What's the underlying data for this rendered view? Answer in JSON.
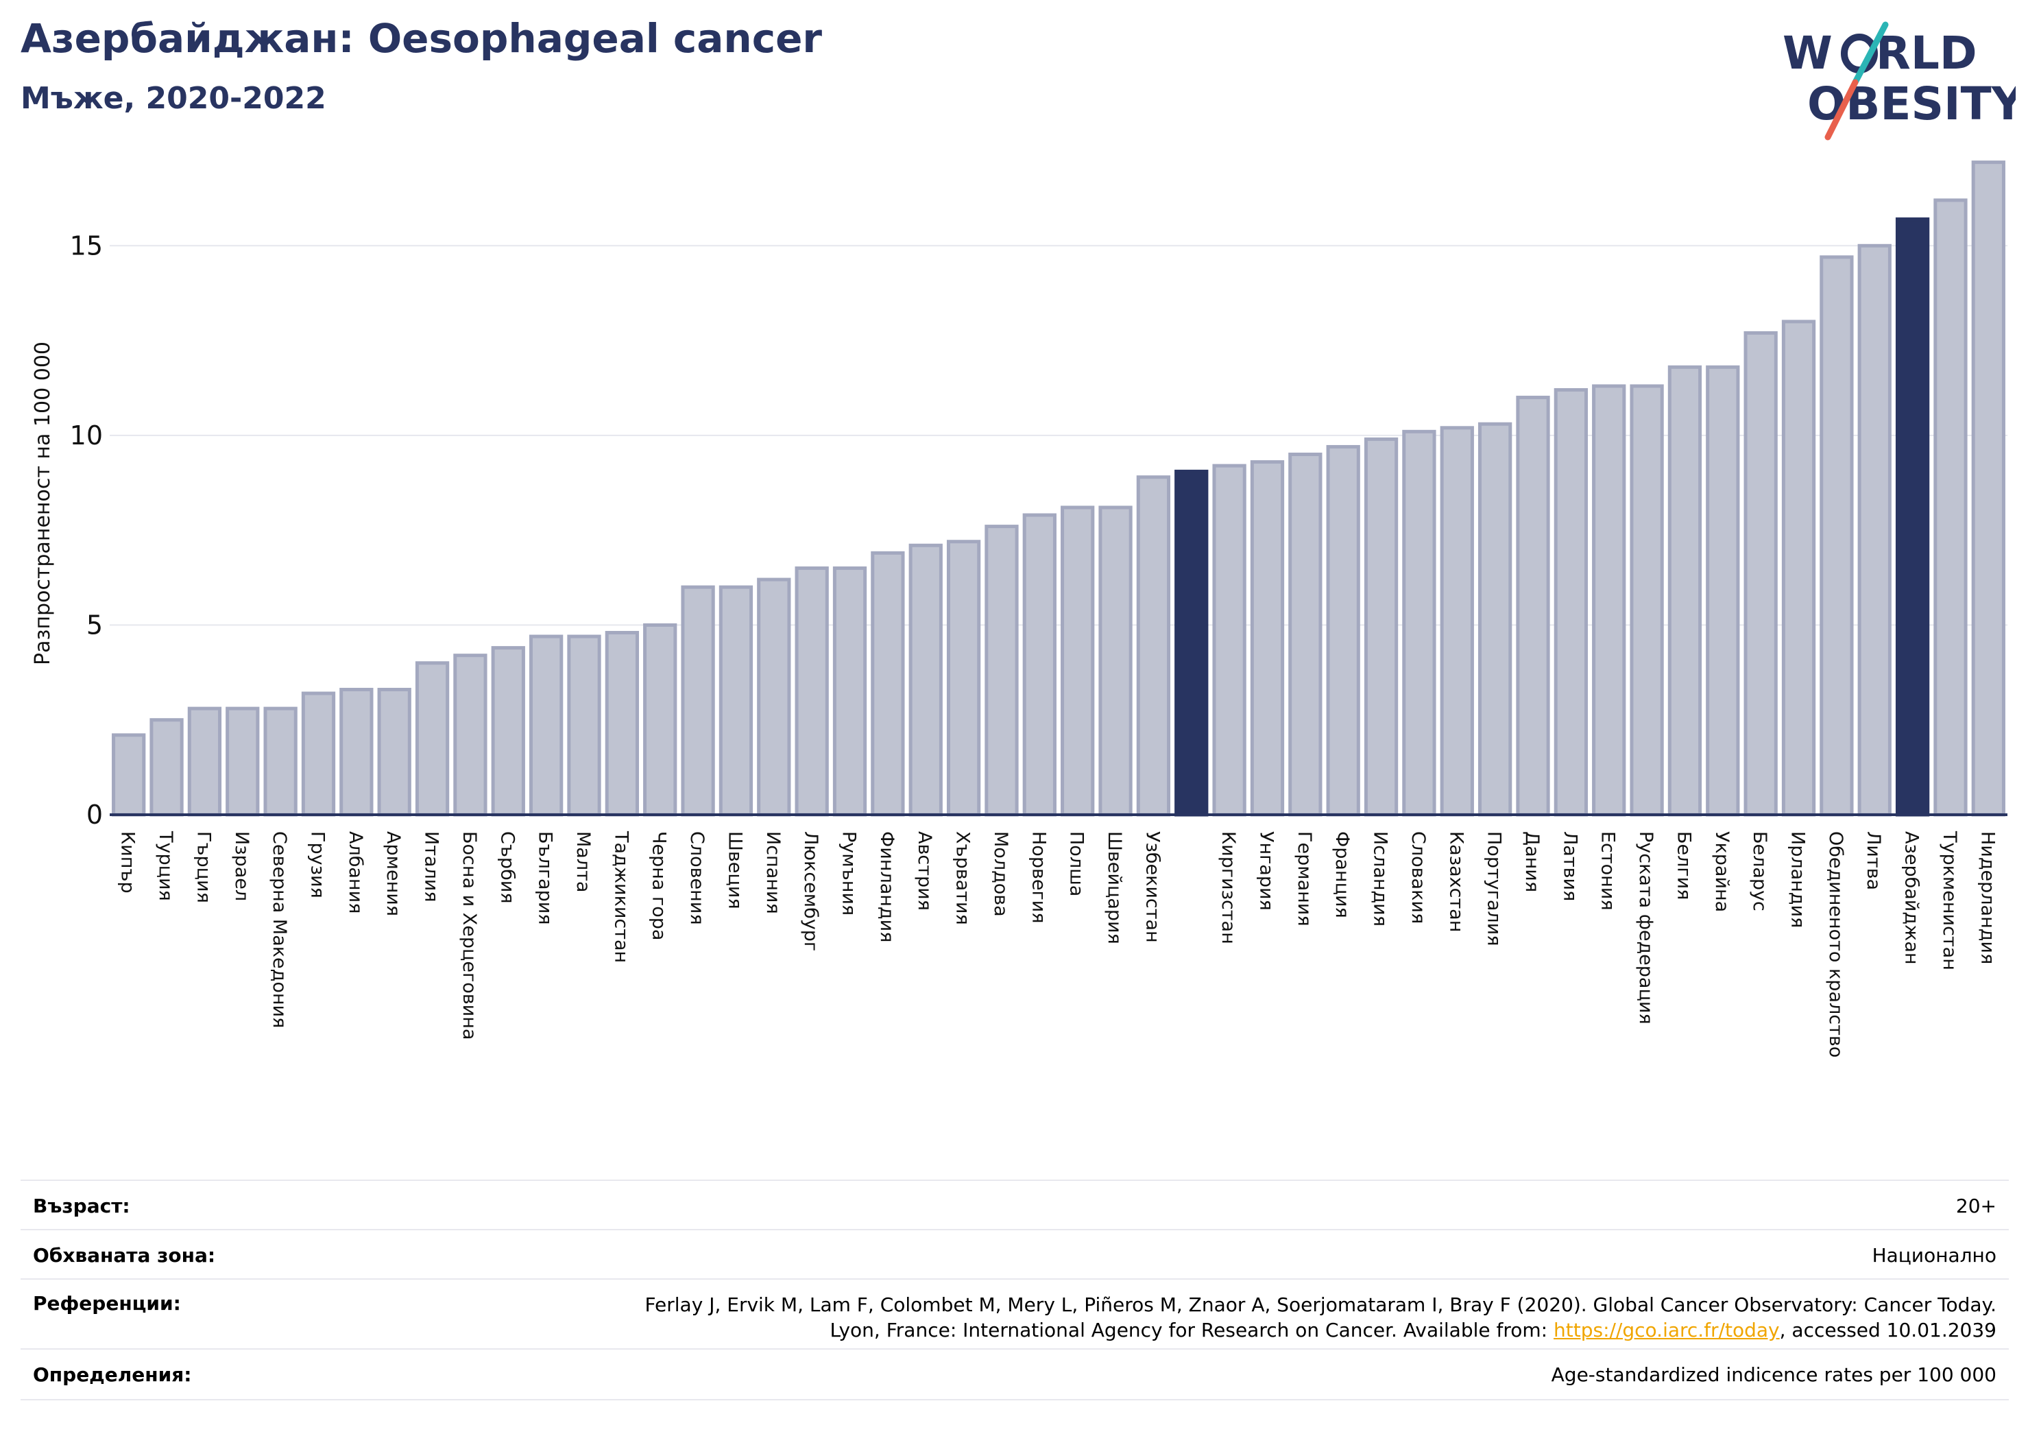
{
  "header": {
    "title": "Азербайджан: Oesophageal cancer",
    "subtitle": "Мъже, 2020-2022"
  },
  "logo": {
    "line1": "W",
    "line1b": "RLD",
    "line2": "OBESITY",
    "text": "WORLD OBESITY"
  },
  "colors": {
    "bar": "#bfc3d1",
    "bar_border": "#a3a8bf",
    "highlight": "#283461",
    "title": "#283461",
    "grid": "#e6e7ee",
    "logo_teal": "#2bb5b5",
    "logo_red": "#e8604c"
  },
  "chart_data": {
    "type": "bar",
    "ylabel": "Разпространеност  на 100 000",
    "ylim": [
      0,
      17.5
    ],
    "yticks": [
      0,
      5,
      10,
      15
    ],
    "grid": true,
    "categories": [
      "Кипър",
      "Турция",
      "Гърция",
      "Израел",
      "Северна Македония",
      "Грузия",
      "Албания",
      "Армения",
      "Италия",
      "Босна и Херцеговина",
      "Сърбия",
      "България",
      "Малта",
      "Таджикистан",
      "Черна гора",
      "Словения",
      "Швеция",
      "Испания",
      "Люксембург",
      "Румъния",
      "Финландия",
      "Австрия",
      "Хърватия",
      "Молдова",
      "Норвегия",
      "Полша",
      "Швейцария",
      "Узбекистан",
      "",
      "Киргизстан",
      "Унгария",
      "Германия",
      "Франция",
      "Исландия",
      "Словакия",
      "Казахстан",
      "Португалия",
      "Дания",
      "Латвия",
      "Естония",
      "Руската федерация",
      "Белгия",
      "Украйна",
      "Беларус",
      "Ирландия",
      "Обединеното кралство",
      "Литва",
      "Азербайджан",
      "Туркменистан",
      "Нидерландия"
    ],
    "values": [
      2.1,
      2.5,
      2.8,
      2.8,
      2.8,
      3.2,
      3.3,
      3.3,
      4.0,
      4.2,
      4.4,
      4.7,
      4.7,
      4.8,
      5.0,
      6.0,
      6.0,
      6.2,
      6.5,
      6.5,
      6.9,
      7.1,
      7.2,
      7.6,
      7.9,
      8.1,
      8.1,
      8.9,
      9.05,
      9.2,
      9.3,
      9.5,
      9.7,
      9.9,
      10.1,
      10.2,
      10.3,
      11.0,
      11.2,
      11.3,
      11.3,
      11.8,
      11.8,
      12.7,
      13.0,
      14.7,
      15.0,
      15.7,
      16.2,
      17.2
    ],
    "highlight": [
      28,
      47
    ]
  },
  "info": {
    "age_label": "Възраст:",
    "age_value": "20+",
    "area_label": "Обхваната зона:",
    "area_value": "Национално",
    "ref_label": "Референции:",
    "ref_line1": "Ferlay J, Ervik M, Lam F, Colombet M, Mery L, Piñeros M, Znaor A, Soerjomataram I, Bray F (2020). Global Cancer Observatory: Cancer Today.",
    "ref_line2_pre": "Lyon, France: International Agency for Research on Cancer. Available from: ",
    "ref_link": "https://gco.iarc.fr/today",
    "ref_line2_post": ", accessed 10.01.2039",
    "def_label": "Определения:",
    "def_value": "Age-standardized indicence rates per 100 000"
  }
}
